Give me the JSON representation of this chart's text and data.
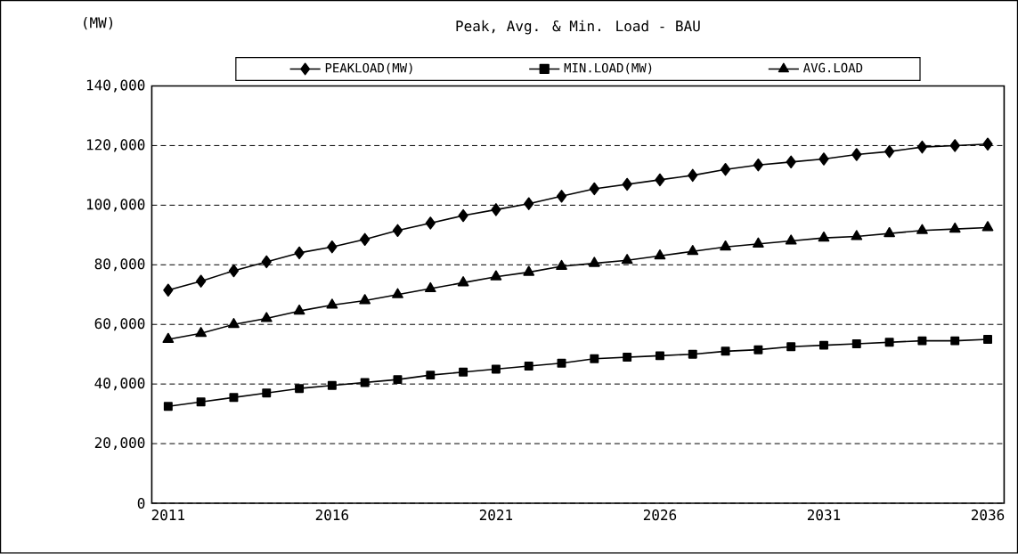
{
  "chart_data": {
    "type": "line",
    "title": "Peak, Avg. & Min. Load - BAU",
    "ylabel": "(MW)",
    "categories": [
      "2011",
      null,
      null,
      null,
      null,
      "2016",
      null,
      null,
      null,
      null,
      "2021",
      null,
      null,
      null,
      null,
      "2026",
      null,
      null,
      null,
      null,
      "2031",
      null,
      null,
      null,
      null,
      "2036"
    ],
    "series": [
      {
        "name": "PEAKLOAD(MW)",
        "color": "#000000",
        "marker": "diamond",
        "values": [
          71500,
          74500,
          78000,
          81000,
          84000,
          86000,
          88500,
          91500,
          94000,
          96500,
          98500,
          100500,
          103000,
          105500,
          107000,
          108500,
          110000,
          112000,
          113500,
          114500,
          115500,
          117000,
          118000,
          119500,
          120000,
          120500
        ]
      },
      {
        "name": "MIN.LOAD(MW)",
        "color": "#000000",
        "marker": "square",
        "values": [
          32500,
          34000,
          35500,
          37000,
          38500,
          39500,
          40500,
          41500,
          43000,
          44000,
          45000,
          46000,
          47000,
          48500,
          49000,
          49500,
          50000,
          51000,
          51500,
          52500,
          53000,
          53500,
          54000,
          54500,
          54500,
          55000
        ]
      },
      {
        "name": "AVG.LOAD",
        "color": "#000000",
        "marker": "triangle",
        "values": [
          55000,
          57000,
          60000,
          62000,
          64500,
          66500,
          68000,
          70000,
          72000,
          74000,
          76000,
          77500,
          79500,
          80500,
          81500,
          83000,
          84500,
          86000,
          87000,
          88000,
          89000,
          89500,
          90500,
          91500,
          92000,
          92500
        ]
      }
    ],
    "ylim": [
      0,
      140000
    ],
    "yticks": [
      0,
      {
        "value": 20000,
        "label": "20,000"
      },
      {
        "value": 40000,
        "label": "40,000"
      },
      {
        "value": 60000,
        "label": "60,000"
      },
      {
        "value": 80000,
        "label": "80,000"
      },
      {
        "value": 100000,
        "label": "100,000"
      },
      {
        "value": 120000,
        "label": "120,000"
      },
      {
        "value": 140000,
        "label": "140,000"
      }
    ],
    "grid": "y",
    "legend": "top",
    "line_style": "solid"
  }
}
